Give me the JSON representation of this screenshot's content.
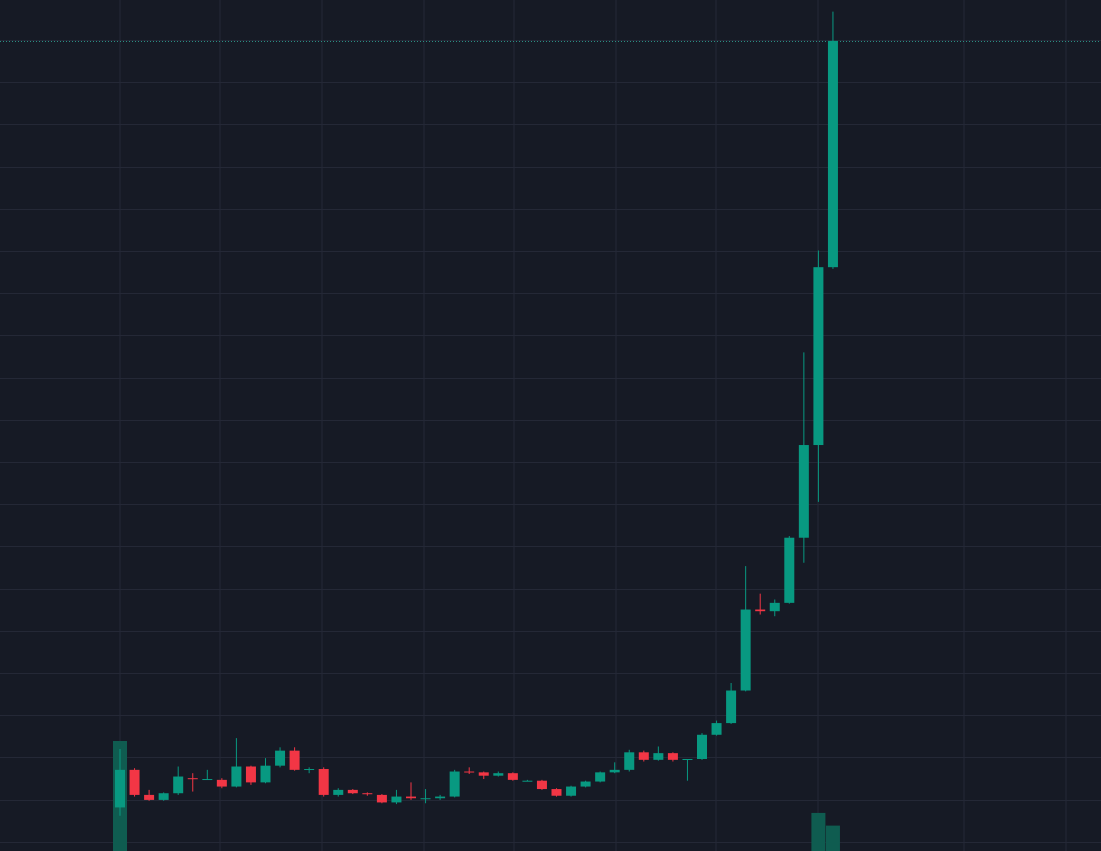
{
  "theme": {
    "background": "#161a25",
    "grid": "#242836",
    "up": "#089981",
    "down": "#f23645",
    "up_volume": "#0f5c50",
    "price_line": "#2a8f83"
  },
  "chart_data": {
    "type": "candlestick",
    "grid": true,
    "ylim": [
      0,
      100
    ],
    "current_price": 96.3,
    "candles": [
      {
        "o": 4.5,
        "h": 11.5,
        "l": 3.5,
        "c": 9.0
      },
      {
        "o": 9.0,
        "h": 9.2,
        "l": 5.8,
        "c": 6.0
      },
      {
        "o": 6.0,
        "h": 6.6,
        "l": 5.3,
        "c": 5.4
      },
      {
        "o": 5.4,
        "h": 6.3,
        "l": 5.3,
        "c": 6.2
      },
      {
        "o": 6.2,
        "h": 9.4,
        "l": 6.0,
        "c": 8.2
      },
      {
        "o": 8.0,
        "h": 8.6,
        "l": 6.4,
        "c": 7.9
      },
      {
        "o": 7.9,
        "h": 9.0,
        "l": 7.8,
        "c": 7.9
      },
      {
        "o": 7.8,
        "h": 8.0,
        "l": 6.8,
        "c": 7.0
      },
      {
        "o": 7.0,
        "h": 12.8,
        "l": 6.9,
        "c": 9.4
      },
      {
        "o": 9.4,
        "h": 9.5,
        "l": 7.2,
        "c": 7.5
      },
      {
        "o": 7.5,
        "h": 10.4,
        "l": 7.4,
        "c": 9.5
      },
      {
        "o": 9.5,
        "h": 11.7,
        "l": 9.3,
        "c": 11.3
      },
      {
        "o": 11.3,
        "h": 11.7,
        "l": 8.9,
        "c": 9.0
      },
      {
        "o": 9.0,
        "h": 9.3,
        "l": 8.6,
        "c": 9.1
      },
      {
        "o": 9.1,
        "h": 9.3,
        "l": 5.8,
        "c": 6.0
      },
      {
        "o": 6.0,
        "h": 6.8,
        "l": 5.8,
        "c": 6.6
      },
      {
        "o": 6.6,
        "h": 6.7,
        "l": 6.1,
        "c": 6.2
      },
      {
        "o": 6.2,
        "h": 6.3,
        "l": 5.9,
        "c": 6.1
      },
      {
        "o": 6.0,
        "h": 6.1,
        "l": 5.0,
        "c": 5.1
      },
      {
        "o": 5.1,
        "h": 6.6,
        "l": 4.9,
        "c": 5.8
      },
      {
        "o": 5.8,
        "h": 7.5,
        "l": 5.4,
        "c": 5.6
      },
      {
        "o": 5.6,
        "h": 6.7,
        "l": 5.0,
        "c": 5.6
      },
      {
        "o": 5.6,
        "h": 6.0,
        "l": 5.4,
        "c": 5.8
      },
      {
        "o": 5.8,
        "h": 9.0,
        "l": 5.7,
        "c": 8.8
      },
      {
        "o": 8.8,
        "h": 9.3,
        "l": 8.5,
        "c": 8.7
      },
      {
        "o": 8.7,
        "h": 8.8,
        "l": 7.9,
        "c": 8.3
      },
      {
        "o": 8.3,
        "h": 8.8,
        "l": 8.2,
        "c": 8.6
      },
      {
        "o": 8.6,
        "h": 8.7,
        "l": 7.7,
        "c": 7.8
      },
      {
        "o": 7.7,
        "h": 7.8,
        "l": 7.6,
        "c": 7.7
      },
      {
        "o": 7.7,
        "h": 7.8,
        "l": 6.6,
        "c": 6.7
      },
      {
        "o": 6.7,
        "h": 6.8,
        "l": 5.8,
        "c": 5.9
      },
      {
        "o": 5.9,
        "h": 7.1,
        "l": 5.8,
        "c": 7.0
      },
      {
        "o": 7.0,
        "h": 7.7,
        "l": 6.9,
        "c": 7.6
      },
      {
        "o": 7.6,
        "h": 8.8,
        "l": 7.5,
        "c": 8.7
      },
      {
        "o": 8.7,
        "h": 9.9,
        "l": 8.6,
        "c": 9.0
      },
      {
        "o": 9.0,
        "h": 11.4,
        "l": 8.8,
        "c": 11.1
      },
      {
        "o": 11.1,
        "h": 11.3,
        "l": 10.0,
        "c": 10.2
      },
      {
        "o": 10.2,
        "h": 11.8,
        "l": 10.1,
        "c": 11.0
      },
      {
        "o": 11.0,
        "h": 11.1,
        "l": 10.0,
        "c": 10.2
      },
      {
        "o": 10.2,
        "h": 10.3,
        "l": 7.7,
        "c": 10.3
      },
      {
        "o": 10.3,
        "h": 13.4,
        "l": 10.2,
        "c": 13.2
      },
      {
        "o": 13.2,
        "h": 14.9,
        "l": 13.1,
        "c": 14.6
      },
      {
        "o": 14.6,
        "h": 19.4,
        "l": 14.5,
        "c": 18.5
      },
      {
        "o": 18.5,
        "h": 33.4,
        "l": 18.4,
        "c": 28.2
      },
      {
        "o": 28.2,
        "h": 30.1,
        "l": 27.6,
        "c": 28.0
      },
      {
        "o": 28.0,
        "h": 29.4,
        "l": 27.4,
        "c": 29.0
      },
      {
        "o": 29.0,
        "h": 37.0,
        "l": 28.9,
        "c": 36.8
      },
      {
        "o": 36.8,
        "h": 59.0,
        "l": 33.8,
        "c": 47.9
      },
      {
        "o": 47.9,
        "h": 71.2,
        "l": 41.1,
        "c": 69.2
      },
      {
        "o": 69.2,
        "h": 99.8,
        "l": 69.0,
        "c": 96.3
      }
    ],
    "volume": [
      {
        "i": 0,
        "v": 13.0,
        "dir": "up"
      },
      {
        "i": 48,
        "v": 4.5,
        "dir": "up"
      },
      {
        "i": 49,
        "v": 3.0,
        "dir": "up"
      }
    ]
  }
}
